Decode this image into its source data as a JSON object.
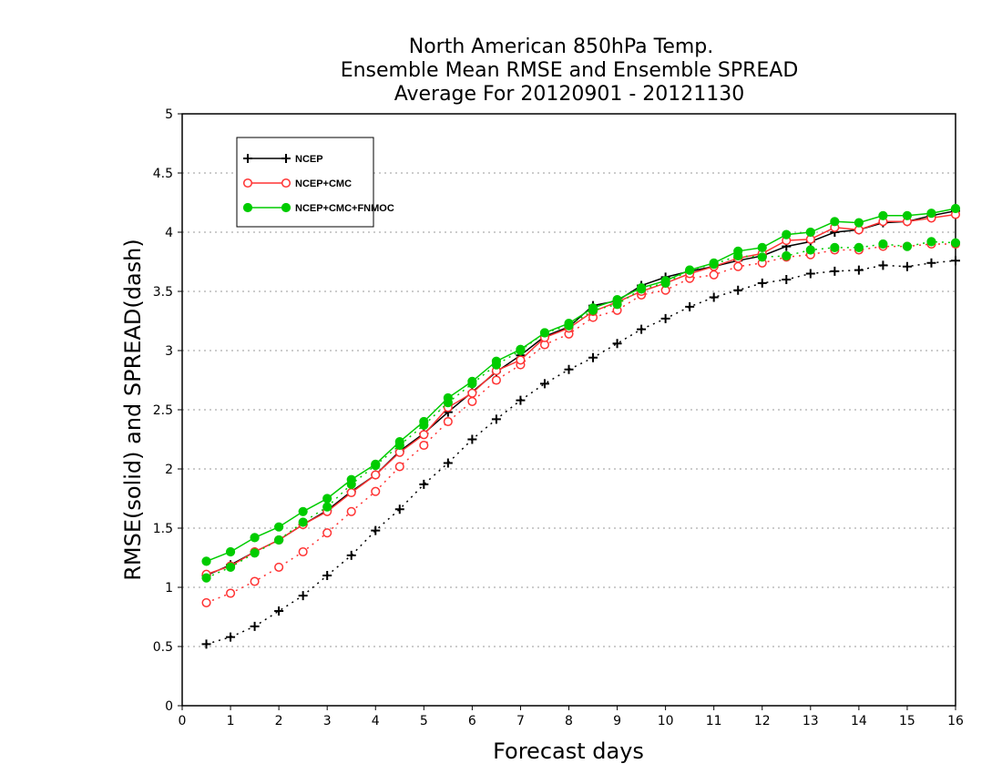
{
  "chart_data": {
    "type": "line",
    "title": [
      "North American 850hPa Temp.",
      "Ensemble Mean RMSE and Ensemble SPREAD",
      "Average For 20120901 - 20121130"
    ],
    "xlabel": "Forecast days",
    "ylabel": "RMSE(solid) and SPREAD(dash)",
    "xlim": [
      0,
      16
    ],
    "ylim": [
      0,
      5
    ],
    "xticks": [
      "0",
      "1",
      "2",
      "3",
      "4",
      "5",
      "6",
      "7",
      "8",
      "9",
      "10",
      "11",
      "12",
      "13",
      "14",
      "15",
      "16"
    ],
    "yticks": [
      "0",
      "0.5",
      "1",
      "1.5",
      "2",
      "2.5",
      "3",
      "3.5",
      "4",
      "4.5",
      "5"
    ],
    "grid": "horizontal dotted",
    "legend_position": "top-left",
    "x": [
      0.5,
      1,
      1.5,
      2,
      2.5,
      3,
      3.5,
      4,
      4.5,
      5,
      5.5,
      6,
      6.5,
      7,
      7.5,
      8,
      8.5,
      9,
      9.5,
      10,
      10.5,
      11,
      11.5,
      12,
      12.5,
      13,
      13.5,
      14,
      14.5,
      15,
      15.5,
      16
    ],
    "series": [
      {
        "name": "NCEP",
        "marker": "plus",
        "color": "#000000",
        "rmse": [
          1.1,
          1.19,
          1.3,
          1.4,
          1.53,
          1.65,
          1.81,
          1.95,
          2.15,
          2.3,
          2.48,
          2.65,
          2.82,
          2.96,
          3.12,
          3.2,
          3.38,
          3.42,
          3.55,
          3.62,
          3.67,
          3.71,
          3.76,
          3.8,
          3.88,
          3.92,
          4.0,
          4.02,
          4.08,
          4.09,
          4.14,
          4.18
        ],
        "spread": [
          0.52,
          0.58,
          0.67,
          0.8,
          0.93,
          1.1,
          1.27,
          1.48,
          1.66,
          1.87,
          2.05,
          2.25,
          2.42,
          2.58,
          2.72,
          2.84,
          2.94,
          3.06,
          3.18,
          3.27,
          3.37,
          3.45,
          3.51,
          3.57,
          3.6,
          3.65,
          3.67,
          3.68,
          3.72,
          3.71,
          3.74,
          3.76
        ]
      },
      {
        "name": "NCEP+CMC",
        "marker": "circle",
        "color": "#ff3333",
        "rmse": [
          1.11,
          1.18,
          1.3,
          1.4,
          1.53,
          1.64,
          1.8,
          1.95,
          2.14,
          2.29,
          2.52,
          2.64,
          2.83,
          2.92,
          3.11,
          3.19,
          3.33,
          3.41,
          3.5,
          3.57,
          3.65,
          3.71,
          3.78,
          3.82,
          3.93,
          3.94,
          4.04,
          4.02,
          4.09,
          4.09,
          4.12,
          4.15
        ],
        "spread": [
          0.87,
          0.95,
          1.05,
          1.17,
          1.3,
          1.46,
          1.64,
          1.81,
          2.02,
          2.2,
          2.4,
          2.57,
          2.75,
          2.88,
          3.05,
          3.14,
          3.28,
          3.34,
          3.47,
          3.51,
          3.61,
          3.64,
          3.71,
          3.74,
          3.79,
          3.81,
          3.85,
          3.85,
          3.88,
          3.88,
          3.9,
          3.9
        ]
      },
      {
        "name": "NCEP+CMC+FNMOC",
        "marker": "filled-circle",
        "color": "#00cc00",
        "rmse": [
          1.22,
          1.3,
          1.42,
          1.51,
          1.64,
          1.75,
          1.91,
          2.04,
          2.23,
          2.4,
          2.6,
          2.74,
          2.91,
          3.01,
          3.15,
          3.23,
          3.36,
          3.43,
          3.53,
          3.59,
          3.68,
          3.74,
          3.84,
          3.87,
          3.98,
          4.0,
          4.09,
          4.08,
          4.14,
          4.14,
          4.16,
          4.2
        ],
        "spread": [
          1.08,
          1.17,
          1.29,
          1.4,
          1.55,
          1.68,
          1.87,
          2.03,
          2.2,
          2.37,
          2.56,
          2.72,
          2.88,
          3.0,
          3.15,
          3.21,
          3.34,
          3.39,
          3.52,
          3.57,
          3.68,
          3.73,
          3.8,
          3.79,
          3.8,
          3.85,
          3.87,
          3.87,
          3.9,
          3.88,
          3.92,
          3.91
        ]
      }
    ]
  }
}
